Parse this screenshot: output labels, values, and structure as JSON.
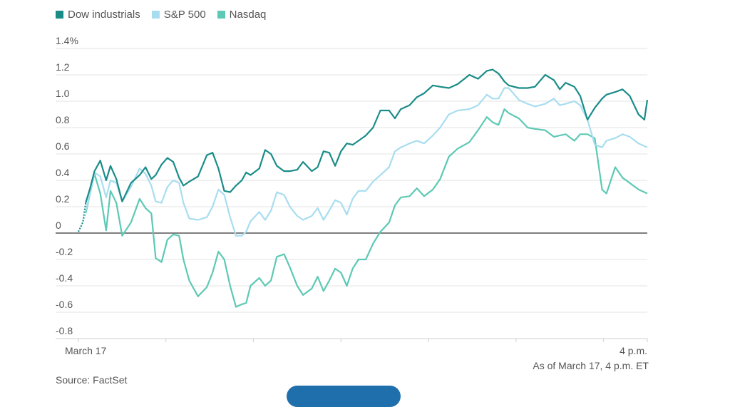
{
  "chart_data": {
    "type": "line",
    "title": "",
    "xlabel": "",
    "ylabel": "",
    "ylim": [
      -0.8,
      1.4
    ],
    "y_ticks": [
      -0.8,
      -0.6,
      -0.4,
      -0.2,
      0,
      0.2,
      0.4,
      0.6,
      0.8,
      1.0,
      1.2,
      1.4
    ],
    "y_tick_labels": [
      "-0.8",
      "-0.6",
      "-0.4",
      "-0.2",
      "0",
      "0.2",
      "0.4",
      "0.6",
      "0.8",
      "1.0",
      "1.2",
      "1.4%"
    ],
    "x_range": [
      0,
      390
    ],
    "x_unit": "minutes after 9:30 a.m. ET",
    "x_tick_labels": [
      {
        "x": 0,
        "label": "March 17"
      },
      {
        "x": 390,
        "label": "4 p.m."
      }
    ],
    "x_minor_ticks": [
      60,
      120,
      180,
      240,
      300,
      360
    ],
    "legend_position": "top-left",
    "series": [
      {
        "name": "Dow industrials",
        "color": "#1a8c88",
        "x": [
          0,
          3,
          5,
          8,
          11,
          15,
          19,
          22,
          26,
          30,
          36,
          42,
          46,
          50,
          53,
          57,
          61,
          65,
          69,
          72,
          76,
          82,
          88,
          92,
          96,
          100,
          104,
          108,
          112,
          115,
          118,
          124,
          128,
          132,
          136,
          141,
          145,
          150,
          154,
          160,
          164,
          168,
          172,
          176,
          180,
          184,
          188,
          192,
          197,
          202,
          207,
          213,
          217,
          221,
          227,
          232,
          237,
          243,
          248,
          254,
          260,
          268,
          274,
          280,
          284,
          288,
          292,
          295,
          302,
          308,
          313,
          320,
          326,
          330,
          334,
          340,
          344,
          349,
          354,
          359,
          362,
          368,
          373,
          378,
          384,
          388,
          390
        ],
        "y": [
          0.01,
          0.08,
          0.23,
          0.34,
          0.47,
          0.55,
          0.4,
          0.51,
          0.41,
          0.24,
          0.38,
          0.44,
          0.5,
          0.41,
          0.44,
          0.52,
          0.57,
          0.54,
          0.42,
          0.36,
          0.39,
          0.43,
          0.59,
          0.61,
          0.49,
          0.32,
          0.31,
          0.36,
          0.4,
          0.46,
          0.44,
          0.49,
          0.63,
          0.6,
          0.51,
          0.47,
          0.47,
          0.48,
          0.54,
          0.47,
          0.5,
          0.62,
          0.61,
          0.51,
          0.62,
          0.68,
          0.67,
          0.7,
          0.74,
          0.8,
          0.93,
          0.93,
          0.87,
          0.94,
          0.97,
          1.03,
          1.06,
          1.12,
          1.11,
          1.1,
          1.13,
          1.2,
          1.17,
          1.23,
          1.24,
          1.21,
          1.15,
          1.12,
          1.1,
          1.1,
          1.11,
          1.2,
          1.16,
          1.09,
          1.14,
          1.11,
          1.04,
          0.86,
          0.95,
          1.02,
          1.05,
          1.07,
          1.09,
          1.04,
          0.9,
          0.86,
          1.01
        ]
      },
      {
        "name": "S&P 500",
        "color": "#a8ddf0",
        "x": [
          0,
          3,
          5,
          8,
          11,
          15,
          19,
          22,
          26,
          30,
          36,
          42,
          46,
          50,
          53,
          57,
          61,
          65,
          69,
          72,
          76,
          82,
          88,
          92,
          96,
          100,
          104,
          108,
          112,
          115,
          118,
          124,
          128,
          132,
          136,
          141,
          145,
          150,
          154,
          160,
          164,
          168,
          172,
          176,
          180,
          184,
          188,
          192,
          197,
          202,
          207,
          213,
          217,
          221,
          227,
          232,
          237,
          243,
          248,
          254,
          260,
          268,
          274,
          280,
          284,
          288,
          292,
          295,
          302,
          308,
          313,
          320,
          326,
          330,
          334,
          340,
          344,
          349,
          354,
          359,
          362,
          368,
          373,
          378,
          384,
          388,
          390
        ],
        "y": [
          0.01,
          0.08,
          0.17,
          0.3,
          0.46,
          0.43,
          0.27,
          0.4,
          0.38,
          0.24,
          0.35,
          0.49,
          0.45,
          0.36,
          0.24,
          0.23,
          0.35,
          0.4,
          0.38,
          0.23,
          0.11,
          0.1,
          0.12,
          0.2,
          0.33,
          0.29,
          0.12,
          -0.02,
          -0.02,
          0.01,
          0.09,
          0.16,
          0.1,
          0.17,
          0.31,
          0.29,
          0.2,
          0.13,
          0.1,
          0.13,
          0.19,
          0.1,
          0.17,
          0.25,
          0.23,
          0.14,
          0.26,
          0.32,
          0.32,
          0.39,
          0.44,
          0.5,
          0.62,
          0.65,
          0.68,
          0.7,
          0.68,
          0.74,
          0.8,
          0.9,
          0.93,
          0.94,
          0.97,
          1.05,
          1.02,
          1.02,
          1.1,
          1.1,
          1.01,
          0.98,
          0.96,
          0.98,
          1.02,
          0.97,
          0.98,
          1.0,
          0.97,
          0.86,
          0.67,
          0.65,
          0.7,
          0.72,
          0.75,
          0.73,
          0.68,
          0.66,
          0.65
        ]
      },
      {
        "name": "Nasdaq",
        "color": "#5cc9b4",
        "x": [
          0,
          3,
          5,
          8,
          11,
          15,
          19,
          22,
          26,
          30,
          36,
          42,
          46,
          50,
          53,
          57,
          61,
          65,
          69,
          72,
          76,
          82,
          88,
          92,
          96,
          100,
          104,
          108,
          112,
          115,
          118,
          124,
          128,
          132,
          136,
          141,
          145,
          150,
          154,
          160,
          164,
          168,
          172,
          176,
          180,
          184,
          188,
          192,
          197,
          202,
          207,
          213,
          217,
          221,
          227,
          232,
          237,
          243,
          248,
          254,
          260,
          268,
          274,
          280,
          284,
          288,
          292,
          295,
          302,
          308,
          313,
          320,
          326,
          330,
          334,
          340,
          344,
          349,
          354,
          359,
          362,
          368,
          373,
          378,
          384,
          388,
          390
        ],
        "y": [
          0.01,
          0.08,
          0.15,
          0.3,
          0.45,
          0.3,
          0.02,
          0.32,
          0.23,
          -0.02,
          0.08,
          0.26,
          0.19,
          0.15,
          -0.19,
          -0.22,
          -0.05,
          -0.01,
          -0.02,
          -0.2,
          -0.36,
          -0.48,
          -0.41,
          -0.3,
          -0.14,
          -0.2,
          -0.4,
          -0.56,
          -0.54,
          -0.53,
          -0.4,
          -0.34,
          -0.4,
          -0.36,
          -0.18,
          -0.16,
          -0.26,
          -0.4,
          -0.47,
          -0.42,
          -0.33,
          -0.44,
          -0.36,
          -0.27,
          -0.3,
          -0.4,
          -0.27,
          -0.2,
          -0.2,
          -0.08,
          0.01,
          0.08,
          0.21,
          0.27,
          0.28,
          0.34,
          0.28,
          0.33,
          0.41,
          0.58,
          0.64,
          0.69,
          0.78,
          0.88,
          0.84,
          0.82,
          0.94,
          0.91,
          0.87,
          0.8,
          0.79,
          0.78,
          0.73,
          0.74,
          0.75,
          0.7,
          0.75,
          0.75,
          0.72,
          0.33,
          0.3,
          0.5,
          0.42,
          0.38,
          0.33,
          0.31,
          0.3
        ]
      }
    ]
  },
  "footnote": "As of March 17, 4 p.m. ET",
  "source": "Source: FactSet"
}
